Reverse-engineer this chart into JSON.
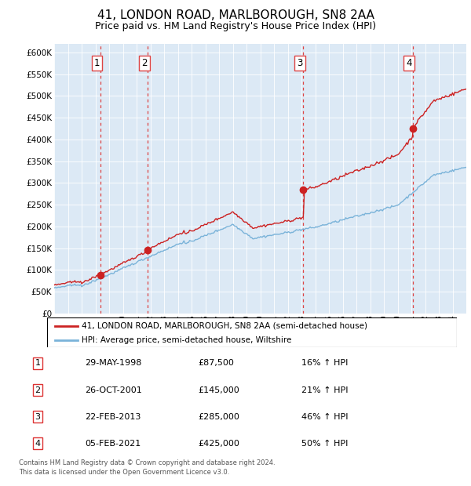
{
  "title": "41, LONDON ROAD, MARLBOROUGH, SN8 2AA",
  "subtitle": "Price paid vs. HM Land Registry's House Price Index (HPI)",
  "title_fontsize": 11,
  "subtitle_fontsize": 9,
  "ylim": [
    0,
    620000
  ],
  "yticks": [
    0,
    50000,
    100000,
    150000,
    200000,
    250000,
    300000,
    350000,
    400000,
    450000,
    500000,
    550000,
    600000
  ],
  "background_color": "#dce9f5",
  "plot_bg_color": "#dce9f5",
  "fig_bg_color": "#ffffff",
  "hpi_line_color": "#7ab3d9",
  "price_line_color": "#cc2222",
  "price_dot_color": "#cc2222",
  "vline_color": "#dd4444",
  "transactions": [
    {
      "label": "1",
      "date_x": 1998.38,
      "price": 87500
    },
    {
      "label": "2",
      "date_x": 2001.82,
      "price": 145000
    },
    {
      "label": "3",
      "date_x": 2013.14,
      "price": 285000
    },
    {
      "label": "4",
      "date_x": 2021.09,
      "price": 425000
    }
  ],
  "legend_entries": [
    "41, LONDON ROAD, MARLBOROUGH, SN8 2AA (semi-detached house)",
    "HPI: Average price, semi-detached house, Wiltshire"
  ],
  "table_rows": [
    [
      "1",
      "29-MAY-1998",
      "£87,500",
      "16% ↑ HPI"
    ],
    [
      "2",
      "26-OCT-2001",
      "£145,000",
      "21% ↑ HPI"
    ],
    [
      "3",
      "22-FEB-2013",
      "£285,000",
      "46% ↑ HPI"
    ],
    [
      "4",
      "05-FEB-2021",
      "£425,000",
      "50% ↑ HPI"
    ]
  ],
  "footer": "Contains HM Land Registry data © Crown copyright and database right 2024.\nThis data is licensed under the Open Government Licence v3.0.",
  "xmin": 1995,
  "xmax": 2025
}
